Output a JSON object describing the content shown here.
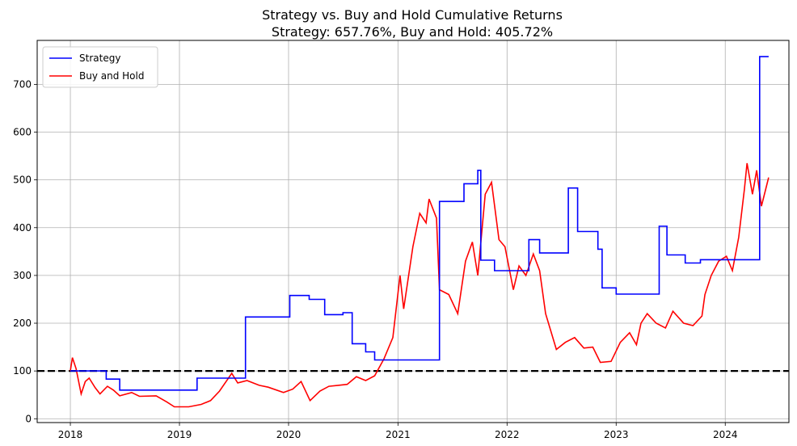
{
  "chart_data": {
    "type": "line",
    "title": "Strategy vs. Buy and Hold Cumulative Returns",
    "subtitle": "Strategy: 657.76%, Buy and Hold: 405.72%",
    "xlabel": "",
    "ylabel": "",
    "x_type": "date",
    "xlim": [
      "2017-09-12",
      "2024-08-01"
    ],
    "ylim": [
      -8,
      792
    ],
    "x_ticks": [
      {
        "date": "2018-01-01",
        "label": "2018"
      },
      {
        "date": "2019-01-01",
        "label": "2019"
      },
      {
        "date": "2020-01-01",
        "label": "2020"
      },
      {
        "date": "2021-01-01",
        "label": "2021"
      },
      {
        "date": "2022-01-01",
        "label": "2022"
      },
      {
        "date": "2023-01-01",
        "label": "2023"
      },
      {
        "date": "2024-01-01",
        "label": "2024"
      }
    ],
    "y_ticks": [
      0,
      100,
      200,
      300,
      400,
      500,
      600,
      700
    ],
    "grid": true,
    "legend": {
      "position": "upper-left",
      "entries": [
        "Strategy",
        "Buy and Hold"
      ]
    },
    "reference_line": {
      "y": 100,
      "style": "dashed",
      "color": "#000000"
    },
    "series": [
      {
        "name": "Strategy",
        "color": "#0000ff",
        "step": true,
        "points": [
          [
            "2018-01-01",
            100
          ],
          [
            "2018-05-01",
            83
          ],
          [
            "2018-06-15",
            60
          ],
          [
            "2019-03-01",
            85
          ],
          [
            "2019-08-10",
            213
          ],
          [
            "2020-01-05",
            258
          ],
          [
            "2020-03-10",
            250
          ],
          [
            "2020-05-01",
            218
          ],
          [
            "2020-07-01",
            222
          ],
          [
            "2020-08-01",
            157
          ],
          [
            "2020-09-15",
            140
          ],
          [
            "2020-10-15",
            123
          ],
          [
            "2021-05-20",
            455
          ],
          [
            "2021-08-10",
            492
          ],
          [
            "2021-09-25",
            520
          ],
          [
            "2021-10-05",
            332
          ],
          [
            "2021-11-20",
            310
          ],
          [
            "2022-03-15",
            375
          ],
          [
            "2022-04-20",
            347
          ],
          [
            "2022-07-25",
            483
          ],
          [
            "2022-08-25",
            392
          ],
          [
            "2022-11-01",
            355
          ],
          [
            "2022-11-15",
            274
          ],
          [
            "2023-01-01",
            261
          ],
          [
            "2023-05-25",
            403
          ],
          [
            "2023-06-20",
            343
          ],
          [
            "2023-08-20",
            326
          ],
          [
            "2023-10-10",
            333
          ],
          [
            "2024-04-25",
            758
          ],
          [
            "2024-05-25",
            758
          ]
        ]
      },
      {
        "name": "Buy and Hold",
        "color": "#ff0000",
        "step": false,
        "points": [
          [
            "2018-01-01",
            100
          ],
          [
            "2018-01-08",
            128
          ],
          [
            "2018-01-20",
            105
          ],
          [
            "2018-02-06",
            52
          ],
          [
            "2018-02-20",
            78
          ],
          [
            "2018-03-05",
            85
          ],
          [
            "2018-03-25",
            65
          ],
          [
            "2018-04-10",
            52
          ],
          [
            "2018-05-05",
            68
          ],
          [
            "2018-05-25",
            60
          ],
          [
            "2018-06-15",
            48
          ],
          [
            "2018-07-25",
            55
          ],
          [
            "2018-08-20",
            47
          ],
          [
            "2018-10-15",
            48
          ],
          [
            "2018-11-20",
            35
          ],
          [
            "2018-12-15",
            25
          ],
          [
            "2019-02-01",
            25
          ],
          [
            "2019-03-15",
            30
          ],
          [
            "2019-04-15",
            38
          ],
          [
            "2019-05-15",
            58
          ],
          [
            "2019-06-25",
            95
          ],
          [
            "2019-07-15",
            75
          ],
          [
            "2019-08-15",
            80
          ],
          [
            "2019-09-25",
            70
          ],
          [
            "2019-10-25",
            66
          ],
          [
            "2019-12-15",
            55
          ],
          [
            "2020-01-15",
            62
          ],
          [
            "2020-02-12",
            78
          ],
          [
            "2020-03-13",
            38
          ],
          [
            "2020-04-15",
            58
          ],
          [
            "2020-05-15",
            68
          ],
          [
            "2020-06-15",
            70
          ],
          [
            "2020-07-15",
            72
          ],
          [
            "2020-08-15",
            88
          ],
          [
            "2020-09-15",
            80
          ],
          [
            "2020-10-15",
            90
          ],
          [
            "2020-11-15",
            125
          ],
          [
            "2020-12-15",
            170
          ],
          [
            "2021-01-08",
            300
          ],
          [
            "2021-01-20",
            230
          ],
          [
            "2021-02-20",
            360
          ],
          [
            "2021-03-15",
            430
          ],
          [
            "2021-04-05",
            410
          ],
          [
            "2021-04-15",
            460
          ],
          [
            "2021-05-10",
            420
          ],
          [
            "2021-05-20",
            270
          ],
          [
            "2021-06-20",
            260
          ],
          [
            "2021-07-20",
            220
          ],
          [
            "2021-08-15",
            330
          ],
          [
            "2021-09-07",
            370
          ],
          [
            "2021-09-25",
            300
          ],
          [
            "2021-10-20",
            470
          ],
          [
            "2021-11-10",
            495
          ],
          [
            "2021-12-05",
            375
          ],
          [
            "2021-12-25",
            360
          ],
          [
            "2022-01-22",
            270
          ],
          [
            "2022-02-10",
            320
          ],
          [
            "2022-03-05",
            300
          ],
          [
            "2022-03-30",
            345
          ],
          [
            "2022-04-20",
            310
          ],
          [
            "2022-05-10",
            220
          ],
          [
            "2022-06-15",
            145
          ],
          [
            "2022-07-15",
            160
          ],
          [
            "2022-08-15",
            170
          ],
          [
            "2022-09-15",
            148
          ],
          [
            "2022-10-15",
            150
          ],
          [
            "2022-11-09",
            118
          ],
          [
            "2022-12-15",
            120
          ],
          [
            "2023-01-15",
            160
          ],
          [
            "2023-02-15",
            180
          ],
          [
            "2023-03-10",
            155
          ],
          [
            "2023-03-25",
            200
          ],
          [
            "2023-04-15",
            220
          ],
          [
            "2023-05-15",
            200
          ],
          [
            "2023-06-15",
            190
          ],
          [
            "2023-07-10",
            225
          ],
          [
            "2023-08-15",
            200
          ],
          [
            "2023-09-15",
            195
          ],
          [
            "2023-10-15",
            215
          ],
          [
            "2023-10-25",
            260
          ],
          [
            "2023-11-15",
            300
          ],
          [
            "2023-12-10",
            330
          ],
          [
            "2024-01-05",
            340
          ],
          [
            "2024-01-25",
            310
          ],
          [
            "2024-02-15",
            380
          ],
          [
            "2024-03-05",
            480
          ],
          [
            "2024-03-14",
            535
          ],
          [
            "2024-04-01",
            470
          ],
          [
            "2024-04-15",
            520
          ],
          [
            "2024-05-01",
            445
          ],
          [
            "2024-05-15",
            480
          ],
          [
            "2024-05-25",
            505
          ]
        ]
      }
    ]
  }
}
